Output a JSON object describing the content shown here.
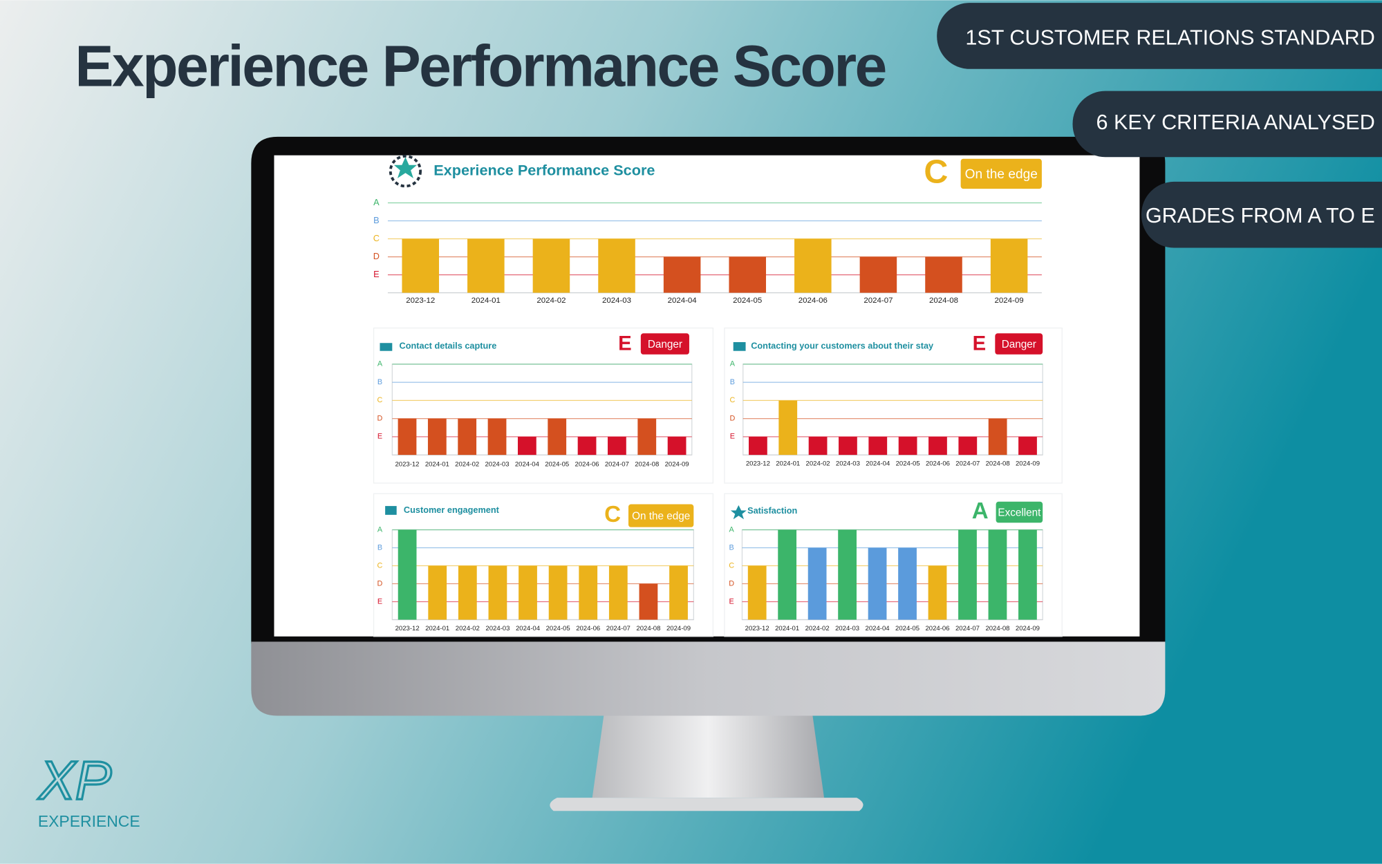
{
  "header": {
    "title": "Experience Performance Score"
  },
  "badges": [
    "1ST CUSTOMER RELATIONS STANDARD",
    "6 KEY CRITERIA ANALYSED",
    "GRADES FROM A TO E"
  ],
  "logo": {
    "mark": "XP",
    "name": "EXPERIENCE"
  },
  "chart_data": [
    {
      "type": "bar",
      "title": "Experience Performance Score",
      "grade": "C",
      "status": "On the edge",
      "categories": [
        "2023-12",
        "2024-01",
        "2024-02",
        "2024-03",
        "2024-04",
        "2024-05",
        "2024-06",
        "2024-07",
        "2024-08",
        "2024-09"
      ],
      "values": [
        3,
        3,
        3,
        3,
        2,
        2,
        3,
        2,
        2,
        3
      ],
      "ylim": [
        0,
        5
      ],
      "yticks": [
        {
          "value": 5,
          "label": "A",
          "color": "#3cb56a"
        },
        {
          "value": 4,
          "label": "B",
          "color": "#5b9bdc"
        },
        {
          "value": 3,
          "label": "C",
          "color": "#ebb21b"
        },
        {
          "value": 2,
          "label": "D",
          "color": "#d4501f"
        },
        {
          "value": 1,
          "label": "E",
          "color": "#d5112a"
        }
      ],
      "grid": true
    },
    {
      "type": "bar",
      "title": "Contact details capture",
      "grade": "E",
      "status": "Danger",
      "categories": [
        "2023-12",
        "2024-01",
        "2024-02",
        "2024-03",
        "2024-04",
        "2024-05",
        "2024-06",
        "2024-07",
        "2024-08",
        "2024-09"
      ],
      "values": [
        2,
        2,
        2,
        2,
        1,
        2,
        1,
        1,
        2,
        1
      ],
      "ylim": [
        0,
        5
      ],
      "yticks": [
        {
          "value": 5,
          "label": "A",
          "color": "#3cb56a"
        },
        {
          "value": 4,
          "label": "B",
          "color": "#5b9bdc"
        },
        {
          "value": 3,
          "label": "C",
          "color": "#ebb21b"
        },
        {
          "value": 2,
          "label": "D",
          "color": "#d4501f"
        },
        {
          "value": 1,
          "label": "E",
          "color": "#d5112a"
        }
      ],
      "grid": true
    },
    {
      "type": "bar",
      "title": "Contacting your customers about their stay",
      "grade": "E",
      "status": "Danger",
      "categories": [
        "2023-12",
        "2024-01",
        "2024-02",
        "2024-03",
        "2024-04",
        "2024-05",
        "2024-06",
        "2024-07",
        "2024-08",
        "2024-09"
      ],
      "values": [
        1,
        3,
        1,
        1,
        1,
        1,
        1,
        1,
        2,
        1
      ],
      "ylim": [
        0,
        5
      ],
      "yticks": [
        {
          "value": 5,
          "label": "A",
          "color": "#3cb56a"
        },
        {
          "value": 4,
          "label": "B",
          "color": "#5b9bdc"
        },
        {
          "value": 3,
          "label": "C",
          "color": "#ebb21b"
        },
        {
          "value": 2,
          "label": "D",
          "color": "#d4501f"
        },
        {
          "value": 1,
          "label": "E",
          "color": "#d5112a"
        }
      ],
      "grid": true
    },
    {
      "type": "bar",
      "title": "Customer engagement",
      "grade": "C",
      "status": "On the edge",
      "categories": [
        "2023-12",
        "2024-01",
        "2024-02",
        "2024-03",
        "2024-04",
        "2024-05",
        "2024-06",
        "2024-07",
        "2024-08",
        "2024-09"
      ],
      "values": [
        5,
        3,
        3,
        3,
        3,
        3,
        3,
        3,
        2,
        3
      ],
      "ylim": [
        0,
        5
      ],
      "yticks": [
        {
          "value": 5,
          "label": "A",
          "color": "#3cb56a"
        },
        {
          "value": 4,
          "label": "B",
          "color": "#5b9bdc"
        },
        {
          "value": 3,
          "label": "C",
          "color": "#ebb21b"
        },
        {
          "value": 2,
          "label": "D",
          "color": "#d4501f"
        },
        {
          "value": 1,
          "label": "E",
          "color": "#d5112a"
        }
      ],
      "grid": true
    },
    {
      "type": "bar",
      "title": "Satisfaction",
      "grade": "A",
      "status": "Excellent",
      "categories": [
        "2023-12",
        "2024-01",
        "2024-02",
        "2024-03",
        "2024-04",
        "2024-05",
        "2024-06",
        "2024-07",
        "2024-08",
        "2024-09"
      ],
      "values": [
        3,
        5,
        4,
        5,
        4,
        4,
        3,
        5,
        5,
        5
      ],
      "ylim": [
        0,
        5
      ],
      "yticks": [
        {
          "value": 5,
          "label": "A",
          "color": "#3cb56a"
        },
        {
          "value": 4,
          "label": "B",
          "color": "#5b9bdc"
        },
        {
          "value": 3,
          "label": "C",
          "color": "#ebb21b"
        },
        {
          "value": 2,
          "label": "D",
          "color": "#d4501f"
        },
        {
          "value": 1,
          "label": "E",
          "color": "#d5112a"
        }
      ],
      "grid": true
    }
  ]
}
